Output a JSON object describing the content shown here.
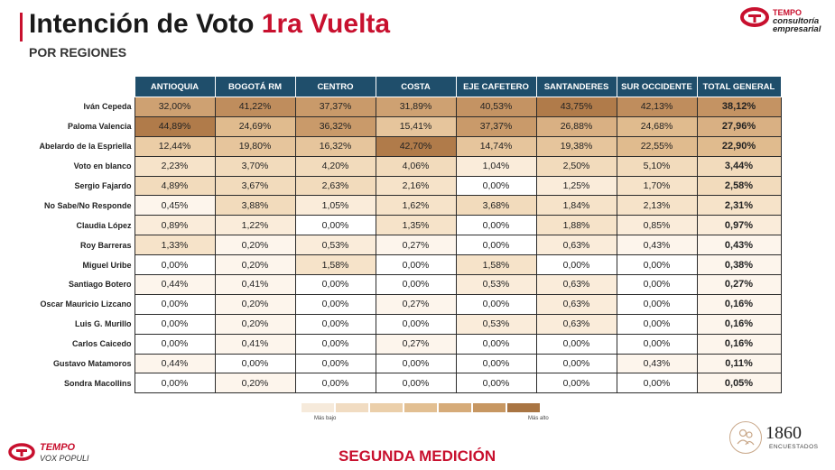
{
  "header": {
    "title_main": "Intención de Voto ",
    "title_accent": "1ra Vuelta",
    "subtitle": "POR REGIONES"
  },
  "logo_top": {
    "line1": "TEMPO",
    "line2": "consultoría",
    "line3": "empresarial"
  },
  "table": {
    "columns": [
      "ANTIOQUIA",
      "BOGOTÁ RM",
      "CENTRO",
      "COSTA",
      "EJE CAFETERO",
      "SANTANDERES",
      "SUR OCCIDENTE",
      "TOTAL GENERAL"
    ],
    "rows": [
      {
        "name": "Iván Cepeda",
        "values": [
          "32,00%",
          "41,22%",
          "37,37%",
          "31,89%",
          "40,53%",
          "43,75%",
          "42,13%",
          "38,12%"
        ]
      },
      {
        "name": "Paloma Valencia",
        "values": [
          "44,89%",
          "24,69%",
          "36,32%",
          "15,41%",
          "37,37%",
          "26,88%",
          "24,68%",
          "27,96%"
        ]
      },
      {
        "name": "Abelardo de la Espriella",
        "values": [
          "12,44%",
          "19,80%",
          "16,32%",
          "42,70%",
          "14,74%",
          "19,38%",
          "22,55%",
          "22,90%"
        ]
      },
      {
        "name": "Voto en blanco",
        "values": [
          "2,23%",
          "3,70%",
          "4,20%",
          "4,06%",
          "1,04%",
          "2,50%",
          "5,10%",
          "3,44%"
        ]
      },
      {
        "name": "Sergio Fajardo",
        "values": [
          "4,89%",
          "3,67%",
          "2,63%",
          "2,16%",
          "0,00%",
          "1,25%",
          "1,70%",
          "2,58%"
        ]
      },
      {
        "name": "No Sabe/No Responde",
        "values": [
          "0,45%",
          "3,88%",
          "1,05%",
          "1,62%",
          "3,68%",
          "1,84%",
          "2,13%",
          "2,31%"
        ]
      },
      {
        "name": "Claudia López",
        "values": [
          "0,89%",
          "1,22%",
          "0,00%",
          "1,35%",
          "0,00%",
          "1,88%",
          "0,85%",
          "0,97%"
        ]
      },
      {
        "name": "Roy Barreras",
        "values": [
          "1,33%",
          "0,20%",
          "0,53%",
          "0,27%",
          "0,00%",
          "0,63%",
          "0,43%",
          "0,43%"
        ]
      },
      {
        "name": "Miguel Uribe",
        "values": [
          "0,00%",
          "0,20%",
          "1,58%",
          "0,00%",
          "1,58%",
          "0,00%",
          "0,00%",
          "0,38%"
        ]
      },
      {
        "name": "Santiago Botero",
        "values": [
          "0,44%",
          "0,41%",
          "0,00%",
          "0,00%",
          "0,53%",
          "0,63%",
          "0,00%",
          "0,27%"
        ]
      },
      {
        "name": "Oscar Mauricio Lizcano",
        "values": [
          "0,00%",
          "0,20%",
          "0,00%",
          "0,27%",
          "0,00%",
          "0,63%",
          "0,00%",
          "0,16%"
        ]
      },
      {
        "name": "Luis G. Murillo",
        "values": [
          "0,00%",
          "0,20%",
          "0,00%",
          "0,00%",
          "0,53%",
          "0,63%",
          "0,00%",
          "0,16%"
        ]
      },
      {
        "name": "Carlos Caicedo",
        "values": [
          "0,00%",
          "0,41%",
          "0,00%",
          "0,27%",
          "0,00%",
          "0,00%",
          "0,00%",
          "0,16%"
        ]
      },
      {
        "name": "Gustavo Matamoros",
        "values": [
          "0,44%",
          "0,00%",
          "0,00%",
          "0,00%",
          "0,00%",
          "0,00%",
          "0,43%",
          "0,11%"
        ]
      },
      {
        "name": "Sondra Macollins",
        "values": [
          "0,00%",
          "0,20%",
          "0,00%",
          "0,00%",
          "0,00%",
          "0,00%",
          "0,00%",
          "0,05%"
        ]
      }
    ]
  },
  "legend": {
    "low_label": "Más bajo",
    "high_label": "Más alto",
    "colors": [
      "#f6eadb",
      "#f1dcc2",
      "#ebcfaa",
      "#e2bf92",
      "#d6ab79",
      "#c79762",
      "#a97543"
    ]
  },
  "colors": {
    "accent": "#c8102e",
    "header_bg": "#1f4e6b"
  },
  "footer": {
    "center": "SEGUNDA MEDICIÓN",
    "brand": "TEMPO",
    "brand_sub": "VOX POPULI",
    "count": "1860",
    "count_label": "ENCUESTADOS"
  }
}
